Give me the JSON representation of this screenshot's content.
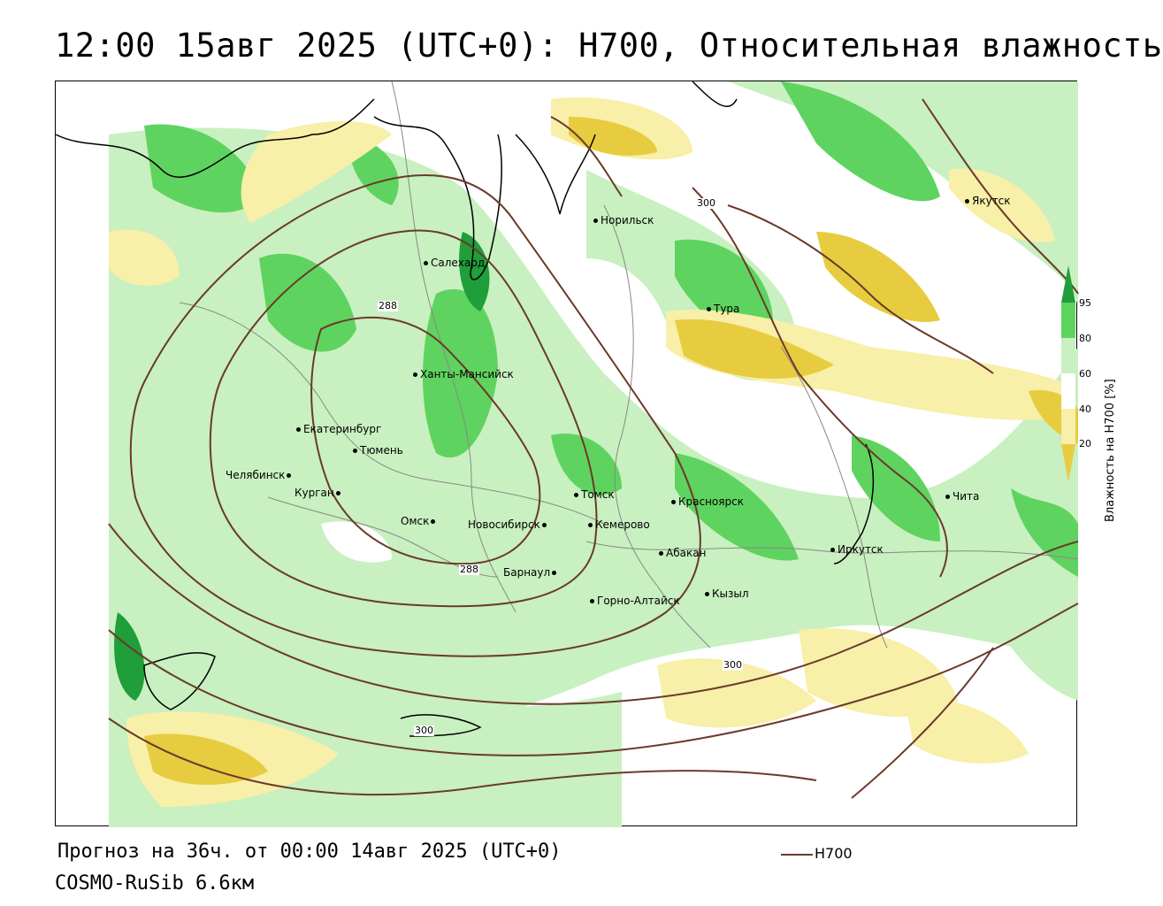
{
  "title": "12:00 15авг 2025 (UTC+0): H700, Относительная влажность",
  "map": {
    "cities": [
      {
        "name": "Якутск"
      },
      {
        "name": "Норильск"
      },
      {
        "name": "Салехард"
      },
      {
        "name": "Тура"
      },
      {
        "name": "Ханты-Мансийск"
      },
      {
        "name": "Екатеринбург"
      },
      {
        "name": "Тюмень"
      },
      {
        "name": "Челябинск"
      },
      {
        "name": "Курган"
      },
      {
        "name": "Омск"
      },
      {
        "name": "Новосибирск"
      },
      {
        "name": "Томск"
      },
      {
        "name": "Кемерово"
      },
      {
        "name": "Красноярск"
      },
      {
        "name": "Абакан"
      },
      {
        "name": "Барнаул"
      },
      {
        "name": "Горно-Алтайск"
      },
      {
        "name": "Кызыл"
      },
      {
        "name": "Иркутск"
      },
      {
        "name": "Чита"
      }
    ],
    "isoline_labels": [
      "300",
      "288",
      "288",
      "300",
      "300"
    ]
  },
  "colorbar": {
    "title": "Влажность на H700 [%]",
    "ticks": [
      "95",
      "80",
      "60",
      "40",
      "20"
    ],
    "colors": {
      "dark_green": "#1f9e3a",
      "green": "#5fd35f",
      "light_green": "#c8f0c0",
      "white": "#ffffff",
      "light_yellow": "#f8efa8",
      "yellow": "#e8cc40"
    }
  },
  "footer": {
    "forecast": "Прогноз на 36ч. от 00:00 14авг 2025 (UTC+0)",
    "model": "COSMO-RuSib 6.6км"
  },
  "legend": {
    "label": "H700",
    "color": "#6b3a2a"
  }
}
